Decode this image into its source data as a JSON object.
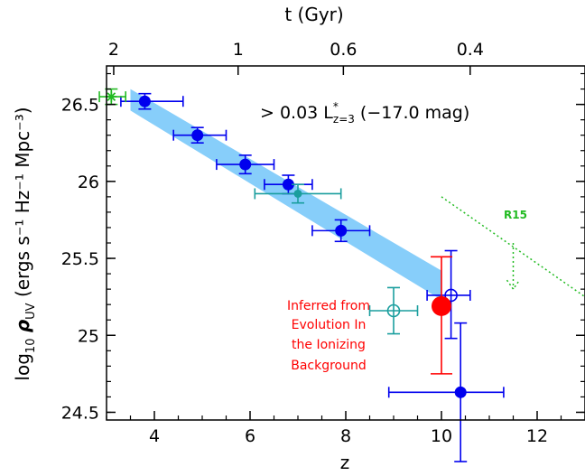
{
  "chart_data": {
    "type": "scatter",
    "xlabel": "z",
    "ylabel_prefix": "log",
    "ylabel_sub": "10",
    "ylabel_rho": "ρ",
    "ylabel_rho_sub": "UV",
    "ylabel_units": "(ergs s⁻¹ Hz⁻¹ Mpc⁻³)",
    "top_axis_label": "t (Gyr)",
    "xlim": [
      3,
      13
    ],
    "ylim": [
      24.45,
      26.75
    ],
    "x_ticks": [
      4,
      6,
      8,
      10,
      12
    ],
    "x_tick_labels": [
      "4",
      "6",
      "8",
      "10",
      "12"
    ],
    "y_ticks": [
      24.5,
      25,
      25.5,
      26,
      26.5
    ],
    "y_tick_labels": [
      "24.5",
      "25",
      "25.5",
      "26",
      "26.5"
    ],
    "top_ticks": [
      {
        "label": "2",
        "z": 3.15
      },
      {
        "label": "1",
        "z": 5.75
      },
      {
        "label": "0.6",
        "z": 7.95
      },
      {
        "label": "0.4",
        "z": 10.6
      }
    ],
    "annotation_limit": {
      "prefix": "> 0.03 L",
      "sup": "*",
      "sub": "z=3",
      "suffix": " (−17.0 mag)"
    },
    "annotation_inferred": [
      "Inferred from",
      "Evolution In",
      "the Ionizing",
      "Background"
    ],
    "annotation_r15": "R15",
    "colors": {
      "blue": "#0000ee",
      "teal": "#1a9e9e",
      "red": "#ff0000",
      "green": "#22bb22",
      "band": "#87cefa"
    },
    "band": [
      {
        "z": 3.5,
        "lo": 26.46,
        "hi": 26.6
      },
      {
        "z": 10.0,
        "lo": 25.23,
        "hi": 25.42
      }
    ],
    "series": [
      {
        "points": [
          {
            "x": 3.8,
            "y": 26.52,
            "xerr": [
              0.5,
              0.8
            ],
            "yerr": [
              0.05,
              0.05
            ]
          },
          {
            "x": 4.9,
            "y": 26.3,
            "xerr": [
              0.5,
              0.6
            ],
            "yerr": [
              0.05,
              0.05
            ]
          },
          {
            "x": 5.9,
            "y": 26.11,
            "xerr": [
              0.6,
              0.6
            ],
            "yerr": [
              0.06,
              0.06
            ]
          },
          {
            "x": 6.8,
            "y": 25.98,
            "xerr": [
              0.5,
              0.5
            ],
            "yerr": [
              0.06,
              0.06
            ]
          },
          {
            "x": 7.9,
            "y": 25.68,
            "xerr": [
              0.6,
              0.6
            ],
            "yerr": [
              0.07,
              0.07
            ]
          },
          {
            "x": 10.4,
            "y": 24.63,
            "xerr": [
              1.5,
              0.9
            ],
            "yerr": [
              0.45,
              0.45
            ]
          }
        ]
      },
      {
        "points": [
          {
            "x": 10.2,
            "y": 25.26,
            "xerr": [
              0.5,
              0.4
            ],
            "yerr": [
              0.28,
              0.29
            ]
          }
        ]
      },
      {
        "points": [
          {
            "x": 7.0,
            "y": 25.92,
            "xerr": [
              0.9,
              0.9
            ],
            "yerr": [
              0.06,
              0.06
            ]
          }
        ]
      },
      {
        "points": [
          {
            "x": 9.0,
            "y": 25.16,
            "xerr": [
              0.5,
              0.5
            ],
            "yerr": [
              0.15,
              0.15
            ]
          }
        ]
      },
      {
        "points": [
          {
            "x": 10.0,
            "y": 25.19,
            "yerr": [
              0.44,
              0.32
            ]
          }
        ]
      },
      {
        "points": [
          {
            "x": 3.1,
            "y": 26.55,
            "xerr": [
              0.25,
              0.3
            ],
            "yerr": [
              0.05,
              0.05
            ]
          }
        ]
      }
    ],
    "r15_line": [
      {
        "x": 10.0,
        "y": 25.9
      },
      {
        "x": 13.0,
        "y": 25.25
      }
    ],
    "r15_arrow": {
      "x": 11.5,
      "y_from": 25.6,
      "y_to": 25.3
    }
  }
}
